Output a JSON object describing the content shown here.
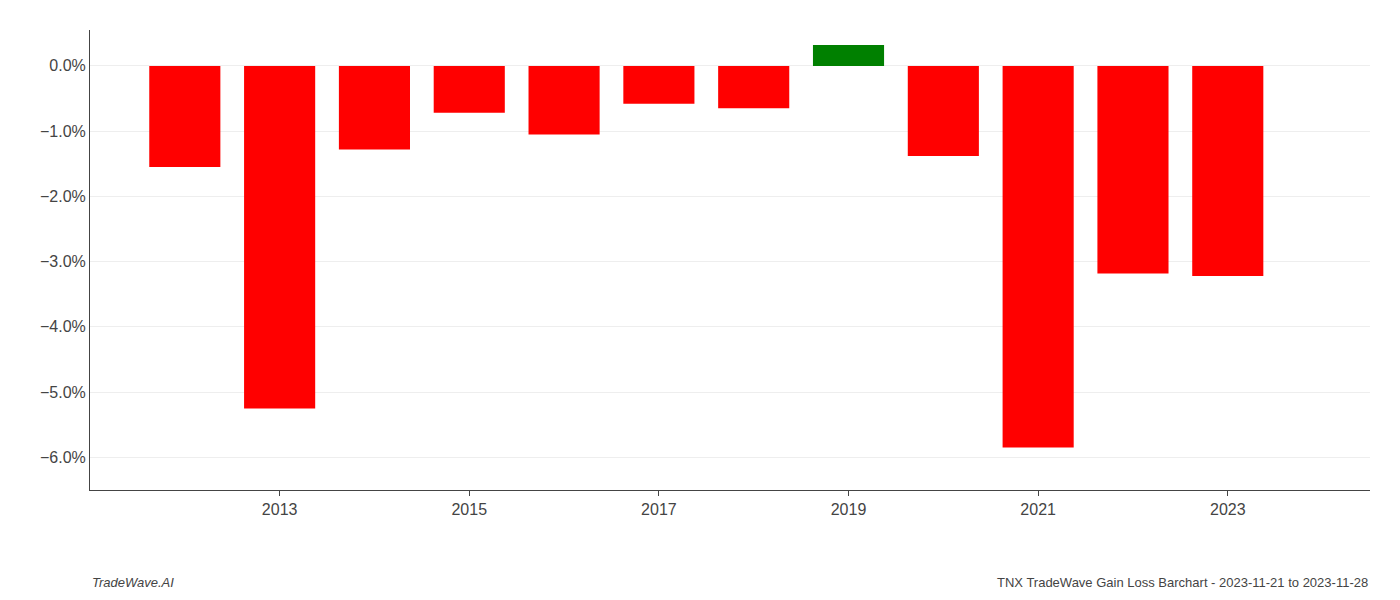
{
  "chart_data": {
    "type": "bar",
    "x": [
      2012,
      2013,
      2014,
      2015,
      2016,
      2017,
      2018,
      2019,
      2020,
      2021,
      2022,
      2023
    ],
    "values": [
      -1.55,
      -5.25,
      -1.28,
      -0.72,
      -1.05,
      -0.58,
      -0.65,
      0.32,
      -1.38,
      -5.85,
      -3.18,
      -3.22
    ],
    "colors": [
      "#ff0000",
      "#ff0000",
      "#ff0000",
      "#ff0000",
      "#ff0000",
      "#ff0000",
      "#ff0000",
      "#008000",
      "#ff0000",
      "#ff0000",
      "#ff0000",
      "#ff0000"
    ],
    "xlim": [
      2011.0,
      2024.5
    ],
    "xticks": [
      2013,
      2015,
      2017,
      2019,
      2021,
      2023
    ],
    "ylim": [
      -6.5,
      0.55
    ],
    "yticks": [
      {
        "value": 0.0,
        "label": "0.0%"
      },
      {
        "value": -1.0,
        "label": "−1.0%"
      },
      {
        "value": -2.0,
        "label": "−2.0%"
      },
      {
        "value": -3.0,
        "label": "−3.0%"
      },
      {
        "value": -4.0,
        "label": "−4.0%"
      },
      {
        "value": -5.0,
        "label": "−5.0%"
      },
      {
        "value": -6.0,
        "label": "−6.0%"
      }
    ],
    "grid": true,
    "annotations": [
      "TradeWave.AI",
      "TNX TradeWave Gain Loss Barchart - 2023-11-21 to 2023-11-28"
    ]
  }
}
